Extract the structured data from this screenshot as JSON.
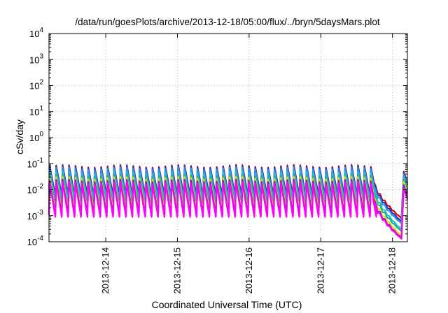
{
  "chart_data": {
    "type": "line",
    "title": "/data/run/goesPlots/archive/2013-12-18/05:00/flux/../bryn/5daysMars.plot",
    "xlabel": "Coordinated Universal Time (UTC)",
    "ylabel": "cSv/day",
    "yscale": "log",
    "ylim": [
      0.0001,
      10000
    ],
    "y_ticks": [
      {
        "value": 0.0001,
        "mantissa": "10",
        "exp": "-4"
      },
      {
        "value": 0.001,
        "mantissa": "10",
        "exp": "-3"
      },
      {
        "value": 0.01,
        "mantissa": "10",
        "exp": "-2"
      },
      {
        "value": 0.1,
        "mantissa": "10",
        "exp": "-1"
      },
      {
        "value": 1,
        "mantissa": "10",
        "exp": "0"
      },
      {
        "value": 10,
        "mantissa": "10",
        "exp": "1"
      },
      {
        "value": 100,
        "mantissa": "10",
        "exp": "2"
      },
      {
        "value": 1000,
        "mantissa": "10",
        "exp": "3"
      },
      {
        "value": 10000,
        "mantissa": "10",
        "exp": "4"
      }
    ],
    "xlim": [
      "2013-12-13T05:00",
      "2013-12-18T05:00"
    ],
    "x_ticks": [
      {
        "value": "2013-12-14T00:00",
        "label": "2013-12-14"
      },
      {
        "value": "2013-12-15T00:00",
        "label": "2013-12-15"
      },
      {
        "value": "2013-12-16T00:00",
        "label": "2013-12-16"
      },
      {
        "value": "2013-12-17T00:00",
        "label": "2013-12-17"
      },
      {
        "value": "2013-12-18T00:00",
        "label": "2013-12-18"
      }
    ],
    "grid": true,
    "legend": "none",
    "oscillation_period_hours": 2.15,
    "series": [
      {
        "color": "#e00000",
        "peak": 0.08,
        "trough": 0.006,
        "decline_end": 0.0008,
        "final_peak": 0.05
      },
      {
        "color": "#2030c0",
        "peak": 0.075,
        "trough": 0.0055,
        "decline_end": 0.0006,
        "final_peak": 0.045
      },
      {
        "color": "#3090e0",
        "peak": 0.065,
        "trough": 0.004,
        "decline_end": 0.0005,
        "final_peak": 0.04
      },
      {
        "color": "#20c0e0",
        "peak": 0.045,
        "trough": 0.003,
        "decline_end": 0.0003,
        "final_peak": 0.03
      },
      {
        "color": "#20b090",
        "peak": 0.035,
        "trough": 0.0022,
        "decline_end": 0.00025,
        "final_peak": 0.025
      },
      {
        "color": "#e0e000",
        "peak": 0.028,
        "trough": 0.0015,
        "decline_end": 0.00017,
        "final_peak": 0.02
      },
      {
        "color": "#8020c0",
        "peak": 0.022,
        "trough": 0.0011,
        "decline_end": 0.00014,
        "final_peak": 0.015
      },
      {
        "color": "#ff00ff",
        "peak": 0.018,
        "trough": 0.0009,
        "decline_end": 0.00013,
        "final_peak": 0.012
      }
    ]
  }
}
